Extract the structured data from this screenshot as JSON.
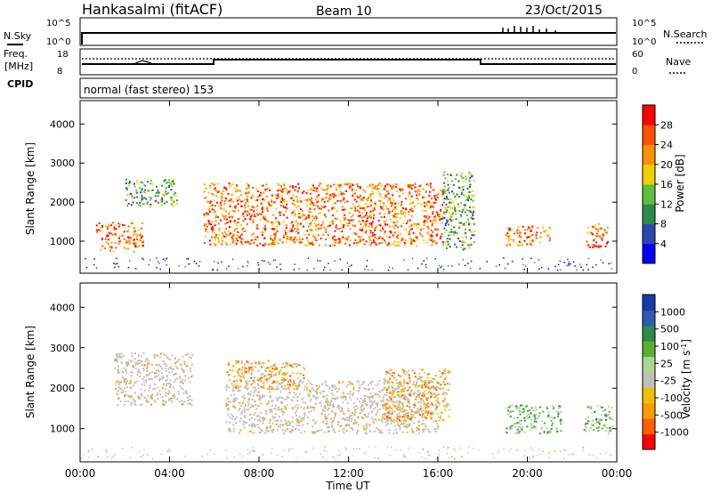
{
  "header": {
    "station": "Hankasalmi (fitACF)",
    "beam": "Beam 10",
    "date": "23/Oct/2015"
  },
  "status_panels": {
    "nsky_label": "N.Sky",
    "nsky_ticks": [
      "10^5",
      "10^0"
    ],
    "nsearch_label": "N.Search",
    "nsearch_ticks": [
      "10^5",
      "10^0"
    ],
    "freq_label_1": "Freq.",
    "freq_label_2": "[MHz]",
    "freq_ticks": [
      "18",
      "8"
    ],
    "nave_label": "Nave",
    "nave_ticks": [
      "60",
      "0"
    ],
    "cpid_label": "CPID",
    "cpid_text": "normal (fast stereo) 153"
  },
  "x_axis": {
    "label": "Time UT",
    "ticks": [
      "00:00",
      "04:00",
      "08:00",
      "12:00",
      "16:00",
      "20:00",
      "00:00"
    ]
  },
  "colors": {
    "power_scale": [
      "#0000ff",
      "#2a48b0",
      "#2e8a4a",
      "#5fbf3f",
      "#f0d000",
      "#ff9000",
      "#ff5000",
      "#ff0000"
    ],
    "velocity_scale": [
      "#ff0000",
      "#ff6000",
      "#ff9a00",
      "#f0c000",
      "#c0c0b8",
      "#a8d890",
      "#5cb030",
      "#2e8a4a",
      "#2e5ab0",
      "#1a3aa8"
    ]
  },
  "chart_data": [
    {
      "type": "heatmap",
      "panel": "power",
      "ylabel": "Slant Range [km]",
      "ylim": [
        180,
        4600
      ],
      "yticks": [
        "1000",
        "2000",
        "3000",
        "4000"
      ],
      "xlim_hours": [
        0,
        24
      ],
      "colorbar_label": "Power [dB]",
      "colorbar_ticks": [
        "4",
        "8",
        "12",
        "16",
        "20",
        "24",
        "28"
      ],
      "features": [
        {
          "t_start": 0.7,
          "t_end": 2.8,
          "range_km": [
            750,
            1500
          ],
          "level": "high"
        },
        {
          "t_start": 2.0,
          "t_end": 4.3,
          "range_km": [
            1900,
            2600
          ],
          "level": "mid"
        },
        {
          "t_start": 5.5,
          "t_end": 16.2,
          "range_km": [
            900,
            2500
          ],
          "level": "high"
        },
        {
          "t_start": 16.2,
          "t_end": 17.6,
          "range_km": [
            800,
            2800
          ],
          "level": "mid"
        },
        {
          "t_start": 19.0,
          "t_end": 21.0,
          "range_km": [
            900,
            1400
          ],
          "level": "high"
        },
        {
          "t_start": 22.6,
          "t_end": 23.6,
          "range_km": [
            850,
            1500
          ],
          "level": "high"
        }
      ]
    },
    {
      "type": "heatmap",
      "panel": "velocity",
      "ylabel": "Slant Range [km]",
      "ylim": [
        180,
        4600
      ],
      "yticks": [
        "1000",
        "2000",
        "3000",
        "4000"
      ],
      "xlim_hours": [
        0,
        24
      ],
      "colorbar_label": "Velocity [m s^-1]",
      "colorbar_ticks": [
        "1000",
        "500",
        "100",
        "25",
        "-25",
        "-100",
        "-500",
        "-1000"
      ],
      "features": [
        {
          "t_start": 1.5,
          "t_end": 5.0,
          "range_km": [
            1600,
            2900
          ],
          "value": "ground scatter"
        },
        {
          "t_start": 6.5,
          "t_end": 16.0,
          "range_km": [
            900,
            2200
          ],
          "value": "ground scatter"
        },
        {
          "t_start": 6.5,
          "t_end": 10.0,
          "range_km": [
            2000,
            2700
          ],
          "value": -100
        },
        {
          "t_start": 13.5,
          "t_end": 16.5,
          "range_km": [
            1200,
            2500
          ],
          "value": -200
        },
        {
          "t_start": 19.0,
          "t_end": 21.5,
          "range_km": [
            900,
            1600
          ],
          "value": 100
        },
        {
          "t_start": 22.5,
          "t_end": 23.8,
          "range_km": [
            900,
            1600
          ],
          "value": 100
        }
      ]
    }
  ]
}
